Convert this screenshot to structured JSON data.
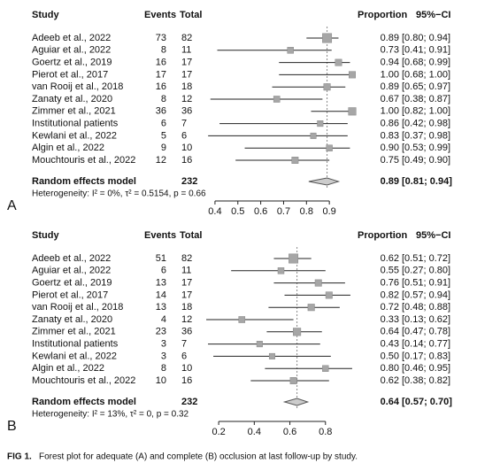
{
  "chart_data": [
    {
      "type": "forest",
      "panel": "A",
      "headers": {
        "study": "Study",
        "events": "Events",
        "total": "Total",
        "proportion": "Proportion",
        "ci": "95%−CI"
      },
      "categories": [
        "Adeeb et al., 2022",
        "Aguiar et al., 2022",
        "Goertz et al., 2019",
        "Pierot et al., 2017",
        "van Rooij et al., 2018",
        "Zanaty et al., 2020",
        "Zimmer et al., 2021",
        "Institutional patients",
        "Kewlani et al., 2022",
        "Algin  et al., 2022",
        "Mouchtouris et al., 2022"
      ],
      "events": [
        73,
        8,
        16,
        17,
        16,
        8,
        36,
        6,
        5,
        9,
        12
      ],
      "totals": [
        82,
        11,
        17,
        17,
        18,
        12,
        36,
        7,
        6,
        10,
        16
      ],
      "values": [
        0.89,
        0.73,
        0.94,
        1.0,
        0.89,
        0.67,
        1.0,
        0.86,
        0.83,
        0.9,
        0.75
      ],
      "value_labels": [
        "0.89",
        "0.73",
        "0.94",
        "1.00",
        "0.89",
        "0.67",
        "1.00",
        "0.86",
        "0.83",
        "0.90",
        "0.75"
      ],
      "lower": [
        0.8,
        0.41,
        0.68,
        0.68,
        0.65,
        0.38,
        0.82,
        0.42,
        0.37,
        0.53,
        0.49
      ],
      "upper": [
        0.94,
        0.91,
        0.99,
        1.0,
        0.97,
        0.87,
        1.0,
        0.98,
        0.98,
        0.99,
        0.9
      ],
      "ci_labels": [
        "[0.80; 0.94]",
        "[0.41; 0.91]",
        "[0.68; 0.99]",
        "[0.68; 1.00]",
        "[0.65; 0.97]",
        "[0.38; 0.87]",
        "[0.82; 1.00]",
        "[0.42; 0.98]",
        "[0.37; 0.98]",
        "[0.53; 0.99]",
        "[0.49; 0.90]"
      ],
      "pooled": {
        "name": "Random effects model",
        "total": 232,
        "value": 0.89,
        "value_label": "0.89",
        "lower": 0.81,
        "upper": 0.94,
        "ci_label": "[0.81; 0.94]"
      },
      "heterogeneity": "Heterogeneity: I² = 0%, τ² = 0.5154, p = 0.66",
      "xlim": [
        0.35,
        1.0
      ],
      "xticks": [
        0.4,
        0.5,
        0.6,
        0.7,
        0.8,
        0.9
      ],
      "color": "#a6a6a6"
    },
    {
      "type": "forest",
      "panel": "B",
      "headers": {
        "study": "Study",
        "events": "Events",
        "total": "Total",
        "proportion": "Proportion",
        "ci": "95%−CI"
      },
      "categories": [
        "Adeeb et al., 2022",
        "Aguiar et al., 2022",
        "Goertz et al., 2019",
        "Pierot et al., 2017",
        "van Rooij et al., 2018",
        "Zanaty et al., 2020",
        "Zimmer et al., 2021",
        "Institutional patients",
        "Kewlani et al., 2022",
        "Algin  et al., 2022",
        "Mouchtouris et al., 2022"
      ],
      "events": [
        51,
        6,
        13,
        14,
        13,
        4,
        23,
        3,
        3,
        8,
        10
      ],
      "totals": [
        82,
        11,
        17,
        17,
        18,
        12,
        36,
        7,
        6,
        10,
        16
      ],
      "values": [
        0.62,
        0.55,
        0.76,
        0.82,
        0.72,
        0.33,
        0.64,
        0.43,
        0.5,
        0.8,
        0.62
      ],
      "value_labels": [
        "0.62",
        "0.55",
        "0.76",
        "0.82",
        "0.72",
        "0.33",
        "0.64",
        "0.43",
        "0.50",
        "0.80",
        "0.62"
      ],
      "lower": [
        0.51,
        0.27,
        0.51,
        0.57,
        0.48,
        0.13,
        0.47,
        0.14,
        0.17,
        0.46,
        0.38
      ],
      "upper": [
        0.72,
        0.8,
        0.91,
        0.94,
        0.88,
        0.62,
        0.78,
        0.77,
        0.83,
        0.95,
        0.82
      ],
      "ci_labels": [
        "[0.51; 0.72]",
        "[0.27; 0.80]",
        "[0.51; 0.91]",
        "[0.57; 0.94]",
        "[0.48; 0.88]",
        "[0.13; 0.62]",
        "[0.47; 0.78]",
        "[0.14; 0.77]",
        "[0.17; 0.83]",
        "[0.46; 0.95]",
        "[0.38; 0.82]"
      ],
      "pooled": {
        "name": "Random effects model",
        "total": 232,
        "value": 0.64,
        "value_label": "0.64",
        "lower": 0.57,
        "upper": 0.7,
        "ci_label": "[0.57; 0.70]"
      },
      "heterogeneity": "Heterogeneity: I² = 13%, τ² = 0, p = 0.32",
      "xlim": [
        0.1,
        1.0
      ],
      "xticks": [
        0.2,
        0.4,
        0.6,
        0.8
      ],
      "color": "#a6a6a6"
    }
  ],
  "caption": {
    "label": "FIG 1.",
    "text": "Forest plot for adequate (A) and complete (B) occlusion at last follow-up by study."
  }
}
